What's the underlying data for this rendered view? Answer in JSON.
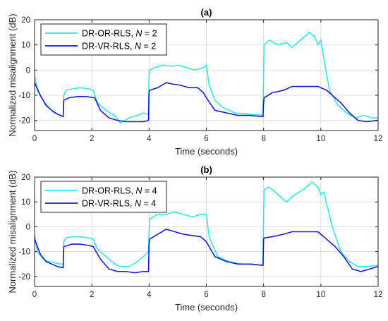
{
  "chart_data": [
    {
      "type": "line",
      "title": "(a)",
      "xlabel": "Time (seconds)",
      "ylabel": "Normalized misalignment (dB)",
      "xlim": [
        0,
        12
      ],
      "ylim": [
        -24,
        20
      ],
      "xticks": [
        0,
        2,
        4,
        6,
        8,
        10,
        12
      ],
      "yticks": [
        -20,
        -10,
        0,
        10,
        20
      ],
      "grid": true,
      "legend_position": "top-left",
      "series": [
        {
          "name": "DR-OR-RLS, N = 2",
          "legend_prefix": "DR-OR-RLS, ",
          "legend_var": "N",
          "legend_suffix": " = 2",
          "color": "#33e6e6",
          "x": [
            0,
            0.1,
            0.3,
            0.5,
            0.7,
            0.9,
            1.0,
            1.02,
            1.1,
            1.3,
            1.6,
            1.9,
            2.05,
            2.2,
            2.5,
            2.8,
            3.0,
            3.3,
            3.6,
            3.8,
            3.98,
            4.0,
            4.02,
            4.2,
            4.5,
            4.8,
            5.0,
            5.3,
            5.6,
            5.9,
            6.0,
            6.1,
            6.3,
            6.6,
            7.0,
            7.5,
            7.98,
            8.0,
            8.02,
            8.2,
            8.5,
            8.8,
            9.0,
            9.2,
            9.4,
            9.6,
            9.7,
            9.8,
            9.9,
            10.0,
            10.1,
            10.3,
            10.6,
            10.9,
            11.2,
            11.5,
            11.8,
            12.0
          ],
          "values": [
            -2,
            -8,
            -12,
            -15,
            -17,
            -18,
            -18.5,
            -10,
            -8,
            -7.5,
            -7,
            -7.5,
            -8,
            -13,
            -16,
            -18,
            -21,
            -19,
            -18,
            -17,
            -17.5,
            -2,
            0,
            1,
            2,
            1.5,
            2,
            1,
            0,
            1,
            2,
            -6,
            -12,
            -15,
            -17,
            -17.5,
            -18,
            -2,
            10,
            12,
            10,
            11,
            9,
            11,
            13,
            15,
            14,
            13,
            10,
            12,
            5,
            -8,
            -14,
            -17,
            -19,
            -18,
            -19,
            -19
          ]
        },
        {
          "name": "DR-VR-RLS, N = 2",
          "legend_prefix": "DR-VR-RLS, ",
          "legend_var": "N",
          "legend_suffix": " = 2",
          "color": "#1a1ad0",
          "x": [
            0,
            0.2,
            0.4,
            0.6,
            0.8,
            1.0,
            1.02,
            1.2,
            1.5,
            1.8,
            2.1,
            2.3,
            2.6,
            2.9,
            3.2,
            3.5,
            3.8,
            3.98,
            4.0,
            4.02,
            4.3,
            4.6,
            4.8,
            5.1,
            5.4,
            5.7,
            5.9,
            6.0,
            6.3,
            6.7,
            7.1,
            7.5,
            7.98,
            8.0,
            8.02,
            8.3,
            8.7,
            9.0,
            9.5,
            9.9,
            10.0,
            10.2,
            10.4,
            10.7,
            11.0,
            11.3,
            11.6,
            12.0
          ],
          "values": [
            -5,
            -10,
            -14,
            -16,
            -17.5,
            -18.5,
            -12,
            -11,
            -10.5,
            -10.5,
            -11,
            -16,
            -19,
            -20,
            -20.5,
            -20.5,
            -20.5,
            -20,
            -9,
            -8,
            -7,
            -5,
            -5.5,
            -6,
            -7,
            -7,
            -9,
            -11,
            -16,
            -17,
            -18,
            -18,
            -18.5,
            -13,
            -11,
            -9,
            -8,
            -6.5,
            -6.5,
            -6.5,
            -7,
            -8,
            -10,
            -13,
            -17,
            -20,
            -20.5,
            -20
          ]
        }
      ]
    },
    {
      "type": "line",
      "title": "(b)",
      "xlabel": "Time (seconds)",
      "ylabel": "Normalized misalignment (dB)",
      "xlim": [
        0,
        12
      ],
      "ylim": [
        -24,
        20
      ],
      "xticks": [
        0,
        2,
        4,
        6,
        8,
        10,
        12
      ],
      "yticks": [
        -20,
        -10,
        0,
        10,
        20
      ],
      "grid": true,
      "legend_position": "top-left",
      "series": [
        {
          "name": "DR-OR-RLS, N = 4",
          "legend_prefix": "DR-OR-RLS, ",
          "legend_var": "N",
          "legend_suffix": " = 4",
          "color": "#33e6e6",
          "x": [
            0,
            0.1,
            0.3,
            0.5,
            0.7,
            0.9,
            1.0,
            1.02,
            1.1,
            1.3,
            1.6,
            1.9,
            2.05,
            2.2,
            2.5,
            2.8,
            3.0,
            3.3,
            3.6,
            3.8,
            3.98,
            4.0,
            4.02,
            4.3,
            4.6,
            4.9,
            5.2,
            5.5,
            5.8,
            6.0,
            6.1,
            6.4,
            6.8,
            7.2,
            7.6,
            7.98,
            8.0,
            8.02,
            8.2,
            8.5,
            8.8,
            9.1,
            9.4,
            9.6,
            9.7,
            9.9,
            10.0,
            10.1,
            10.4,
            10.7,
            11.0,
            11.3,
            11.6,
            12.0
          ],
          "values": [
            -3,
            -10,
            -13,
            -14,
            -14.5,
            -15,
            -15,
            -6,
            -4.5,
            -4,
            -4,
            -4.5,
            -5,
            -9,
            -12,
            -15,
            -16,
            -16,
            -14,
            -12,
            -10,
            -2,
            3,
            5,
            5,
            6,
            5,
            4,
            5,
            5,
            -4,
            -12,
            -14,
            -15,
            -15,
            -15.5,
            5,
            15,
            16,
            13,
            10,
            13,
            15,
            17,
            18,
            16,
            13,
            14,
            0,
            -10,
            -14,
            -16,
            -16,
            -15.5
          ]
        },
        {
          "name": "DR-VR-RLS, N = 4",
          "legend_prefix": "DR-VR-RLS, ",
          "legend_var": "N",
          "legend_suffix": " = 4",
          "color": "#1a1ad0",
          "x": [
            0,
            0.2,
            0.4,
            0.6,
            0.8,
            1.0,
            1.02,
            1.3,
            1.6,
            1.9,
            2.05,
            2.3,
            2.6,
            2.9,
            3.2,
            3.5,
            3.8,
            3.98,
            4.0,
            4.02,
            4.3,
            4.6,
            4.9,
            5.2,
            5.5,
            5.8,
            6.0,
            6.3,
            6.7,
            7.1,
            7.5,
            7.98,
            8.0,
            8.02,
            8.3,
            8.7,
            9.0,
            9.5,
            9.9,
            10.0,
            10.2,
            10.5,
            10.8,
            11.1,
            11.4,
            11.7,
            12.0
          ],
          "values": [
            -5,
            -11,
            -14,
            -15,
            -16,
            -16.5,
            -8,
            -7,
            -7,
            -7.5,
            -8,
            -13,
            -17,
            -18,
            -18,
            -18.5,
            -18,
            -18,
            -7,
            -5,
            -3,
            -1,
            -2,
            -3,
            -3.5,
            -4,
            -6,
            -12,
            -14,
            -15,
            -15,
            -15.5,
            -5,
            -4.5,
            -4,
            -3,
            -2,
            -2,
            -2,
            -3,
            -5,
            -8,
            -12,
            -17,
            -18,
            -17,
            -16
          ]
        }
      ]
    }
  ]
}
